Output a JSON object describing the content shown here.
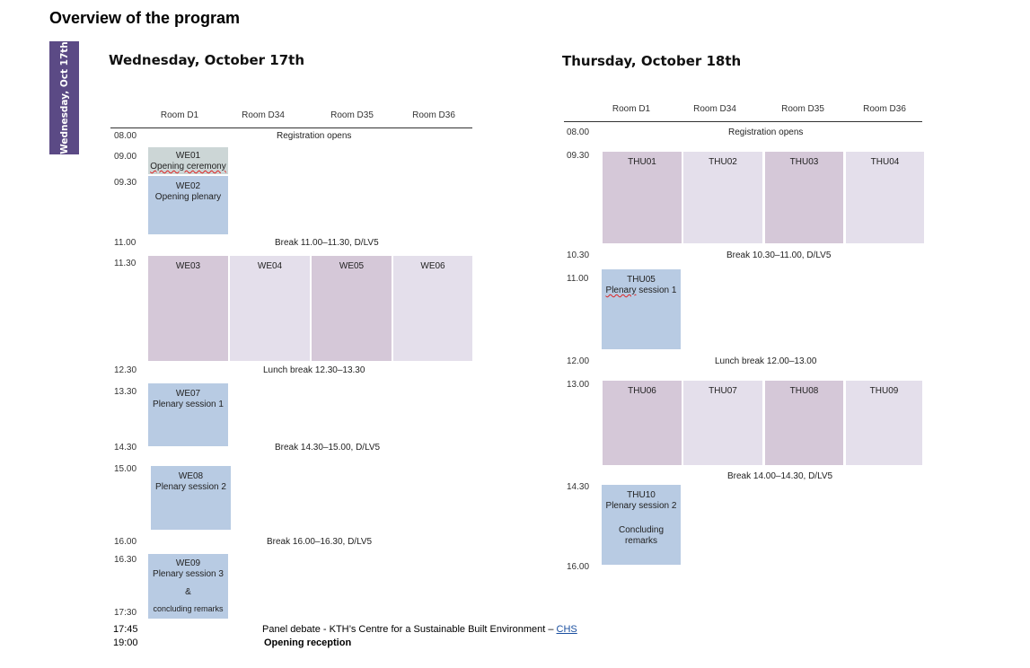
{
  "page_title": "Overview of the program",
  "side_tab": "Wednesday, Oct 17th",
  "rooms": [
    "Room D1",
    "Room D34",
    "Room D35",
    "Room D36"
  ],
  "wednesday": {
    "title": "Wednesday, October 17th",
    "times": [
      "08.00",
      "09.00",
      "09.30",
      "11.00",
      "11.30",
      "12.30",
      "13.30",
      "14.30",
      "15.00",
      "16.00",
      "16.30",
      "17:30"
    ],
    "notes": {
      "registration": "Registration opens",
      "break1": "Break 11.00–11.30, D/LV5",
      "lunch": "Lunch break 12.30–13.30",
      "break2": "Break 14.30–15.00, D/LV5",
      "break3": "Break 16.00–16.30, D/LV5"
    },
    "sessions": {
      "we01": {
        "code": "WE01",
        "title": "Opening ceremony"
      },
      "we02": {
        "code": "WE02",
        "title": "Opening plenary"
      },
      "we03": {
        "code": "WE03"
      },
      "we04": {
        "code": "WE04"
      },
      "we05": {
        "code": "WE05"
      },
      "we06": {
        "code": "WE06"
      },
      "we07": {
        "code": "WE07",
        "title": "Plenary session 1"
      },
      "we08": {
        "code": "WE08",
        "title": "Plenary session 2"
      },
      "we09": {
        "code": "WE09",
        "title": "Plenary session 3",
        "amp": "&",
        "extra": "concluding remarks"
      }
    },
    "bottom": [
      {
        "time": "17:45",
        "text": "Panel debate - KTH’s Centre for a Sustainable Built Environment – ",
        "link": "CHS"
      },
      {
        "time": "19:00",
        "text": "Opening reception"
      }
    ]
  },
  "thursday": {
    "title": "Thursday, October 18th",
    "times": [
      "08.00",
      "09.30",
      "10.30",
      "11.00",
      "12.00",
      "13.00",
      "14.30",
      "16.00"
    ],
    "notes": {
      "registration": "Registration opens",
      "break1": "Break 10.30–11.00, D/LV5",
      "lunch": "Lunch break 12.00–13.00",
      "break2": "Break 14.00–14.30, D/LV5"
    },
    "sessions": {
      "thu01": {
        "code": "THU01"
      },
      "thu02": {
        "code": "THU02"
      },
      "thu03": {
        "code": "THU03"
      },
      "thu04": {
        "code": "THU04"
      },
      "thu05": {
        "code": "THU05",
        "title_a": "Plenary",
        "title_b": " session 1"
      },
      "thu06": {
        "code": "THU06"
      },
      "thu07": {
        "code": "THU07"
      },
      "thu08": {
        "code": "THU08"
      },
      "thu09": {
        "code": "THU09"
      },
      "thu10": {
        "code": "THU10",
        "title": "Plenary session 2",
        "extra1": "Concluding",
        "extra2": "remarks"
      }
    }
  },
  "colors": {
    "side_tab": "#5b4a85",
    "plenary": "#b8cbe3",
    "ceremony": "#ccd6d6",
    "parallel_dark": "#d5c8d8",
    "parallel_light": "#e4dfeb",
    "link": "#1a4fa0"
  }
}
